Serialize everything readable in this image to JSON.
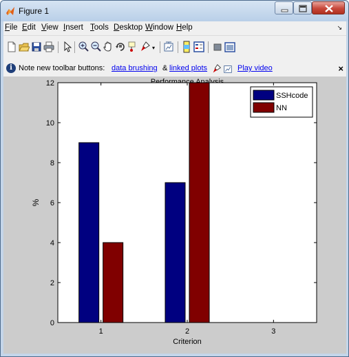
{
  "window": {
    "title": "Figure 1",
    "accent": "#b9cfe8"
  },
  "menu": [
    "File",
    "Edit",
    "View",
    "Insert",
    "Tools",
    "Desktop",
    "Window",
    "Help"
  ],
  "toolbar_icons": [
    "new-figure-icon",
    "open-file-icon",
    "save-icon",
    "print-icon",
    "edit-plot-icon",
    "zoom-in-icon",
    "zoom-out-icon",
    "pan-icon",
    "rotate-3d-icon",
    "data-cursor-icon",
    "brush-icon",
    "link-plot-icon",
    "colorbar-icon",
    "legend-icon",
    "hide-plot-tools-icon",
    "show-plot-tools-icon"
  ],
  "infobar": {
    "prefix": "Note new toolbar buttons:",
    "link1": "data brushing",
    "amp": "&",
    "link2": "linked plots",
    "video": "Play video",
    "close": "×"
  },
  "chart_data": {
    "type": "bar",
    "title": "Performance Analysis",
    "xlabel": "Criterion",
    "ylabel": "%",
    "categories": [
      "1",
      "2",
      "3"
    ],
    "series": [
      {
        "name": "SSHcode",
        "values": [
          9,
          7,
          null
        ],
        "color": "#000080"
      },
      {
        "name": "NN",
        "values": [
          4,
          12,
          null
        ],
        "color": "#800000"
      }
    ],
    "ylim": [
      0,
      12
    ],
    "yticks": [
      0,
      2,
      4,
      6,
      8,
      10,
      12
    ],
    "xlim": [
      0.5,
      3.5
    ],
    "grid": false,
    "legend_position": "top-right"
  }
}
